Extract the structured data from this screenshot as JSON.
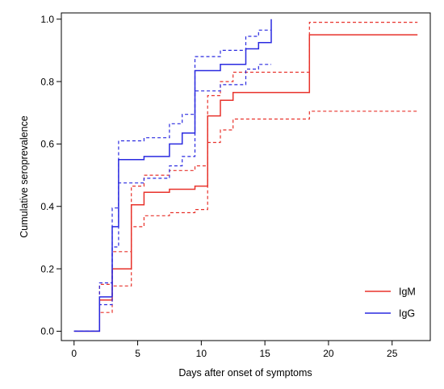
{
  "chart_data": {
    "type": "line",
    "title": "",
    "xlabel": "Days after onset of symptoms",
    "ylabel": "Cumulative seroprevalence",
    "xlim": [
      -1,
      28
    ],
    "ylim": [
      -0.03,
      1.02
    ],
    "xticks": [
      0,
      5,
      10,
      15,
      20,
      25
    ],
    "yticks": [
      0.0,
      0.2,
      0.4,
      0.6,
      0.8,
      1.0
    ],
    "xtick_labels": [
      "0",
      "5",
      "10",
      "15",
      "20",
      "25"
    ],
    "ytick_labels": [
      "0.0",
      "0.2",
      "0.4",
      "0.6",
      "0.8",
      "1.0"
    ],
    "grid": false,
    "legend_position": "bottom-right",
    "step": true,
    "series": [
      {
        "name": "IgM",
        "color": "#e8322b",
        "style": "solid",
        "x": [
          0,
          2,
          3,
          4.5,
          5.5,
          7.5,
          9.5,
          10.5,
          11.5,
          12.5,
          18.5,
          27
        ],
        "y": [
          0.0,
          0.1,
          0.2,
          0.405,
          0.445,
          0.455,
          0.465,
          0.69,
          0.74,
          0.765,
          0.95,
          0.95
        ]
      },
      {
        "name": "IgM",
        "color": "#e8322b",
        "style": "dashed",
        "x": [
          0,
          2,
          3,
          4.5,
          5.5,
          7.5,
          9.5,
          10.5,
          11.5,
          12.5,
          18.5,
          27
        ],
        "y": [
          0.0,
          0.06,
          0.145,
          0.335,
          0.37,
          0.38,
          0.39,
          0.605,
          0.645,
          0.68,
          0.705,
          0.705
        ]
      },
      {
        "name": "IgM",
        "color": "#e8322b",
        "style": "dashed",
        "x": [
          0,
          2,
          3,
          4.5,
          5.5,
          7.5,
          9.5,
          10.5,
          11.5,
          12.5,
          18.5,
          27
        ],
        "y": [
          0.0,
          0.15,
          0.255,
          0.465,
          0.5,
          0.515,
          0.53,
          0.755,
          0.8,
          0.83,
          0.99,
          0.99
        ]
      },
      {
        "name": "IgG",
        "color": "#2a2ae0",
        "style": "solid",
        "x": [
          0,
          2,
          3,
          3.5,
          5.5,
          7.5,
          8.5,
          9.5,
          11.5,
          13.5,
          14.5,
          15.5
        ],
        "y": [
          0.0,
          0.11,
          0.335,
          0.55,
          0.56,
          0.6,
          0.635,
          0.835,
          0.855,
          0.905,
          0.925,
          1.0
        ]
      },
      {
        "name": "IgG",
        "color": "#2a2ae0",
        "style": "dashed",
        "x": [
          0,
          2,
          3,
          3.5,
          5.5,
          7.5,
          8.5,
          9.5,
          11.5,
          13.5,
          14.5,
          15.5
        ],
        "y": [
          0.0,
          0.085,
          0.27,
          0.475,
          0.49,
          0.53,
          0.56,
          0.77,
          0.79,
          0.84,
          0.855,
          0.855
        ]
      },
      {
        "name": "IgG",
        "color": "#2a2ae0",
        "style": "dashed",
        "x": [
          0,
          2,
          3,
          3.5,
          5.5,
          7.5,
          8.5,
          9.5,
          11.5,
          13.5,
          14.5,
          15.5
        ],
        "y": [
          0.0,
          0.155,
          0.395,
          0.61,
          0.62,
          0.665,
          0.695,
          0.88,
          0.9,
          0.945,
          0.965,
          0.965
        ]
      }
    ],
    "legend": [
      {
        "label": "IgM",
        "color": "#e8322b"
      },
      {
        "label": "IgG",
        "color": "#2a2ae0"
      }
    ]
  }
}
